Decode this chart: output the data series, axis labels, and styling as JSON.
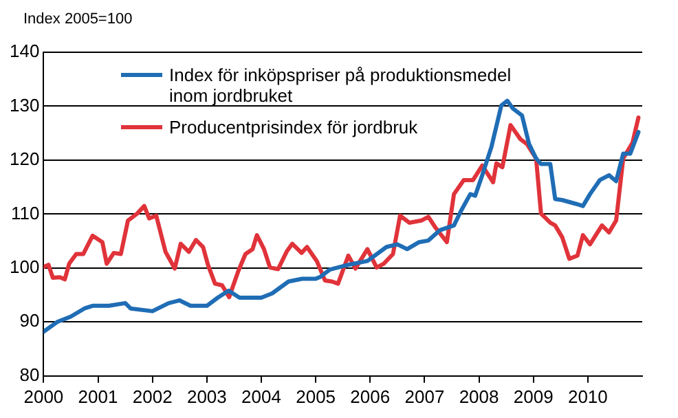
{
  "chart_data": {
    "type": "line",
    "ylabel": "Index 2005=100",
    "xlim": [
      2000,
      2011
    ],
    "xticks": [
      2000,
      2001,
      2002,
      2003,
      2004,
      2005,
      2006,
      2007,
      2008,
      2009,
      2010
    ],
    "ylim": [
      80,
      140
    ],
    "yticks": [
      80,
      90,
      100,
      110,
      120,
      130,
      140
    ],
    "grid": "y",
    "legend": "top left",
    "marker": "none",
    "line_style": "solid",
    "series": [
      {
        "name": "Index för inköpspriser på produktionsmedel inom jordbruket",
        "color": "#1f6db5",
        "x": [
          2000,
          2000.25,
          2000.5,
          2000.75,
          2000.9,
          2001.2,
          2001.5,
          2001.6,
          2002,
          2002.3,
          2002.5,
          2002.7,
          2003,
          2003.2,
          2003.4,
          2003.6,
          2004,
          2004.2,
          2004.5,
          2004.75,
          2005,
          2005.09,
          2005.26,
          2005.6,
          2005.95,
          2006.3,
          2006.5,
          2006.68,
          2006.9,
          2007.07,
          2007.28,
          2007.54,
          2007.67,
          2007.84,
          2007.93,
          2008.06,
          2008.23,
          2008.41,
          2008.52,
          2008.62,
          2008.79,
          2008.92,
          2009.05,
          2009.14,
          2009.31,
          2009.4,
          2009.53,
          2009.78,
          2009.91,
          2010.04,
          2010.22,
          2010.39,
          2010.52,
          2010.65,
          2010.78,
          2010.93
        ],
        "values": [
          88.2,
          90,
          91,
          92.5,
          93,
          93,
          93.5,
          92.5,
          92,
          93.5,
          94,
          93,
          93,
          94.5,
          95.8,
          94.5,
          94.5,
          95.3,
          97.5,
          98,
          98,
          98.4,
          99.7,
          100.6,
          101.3,
          103.9,
          104.4,
          103.5,
          104.8,
          105.1,
          107,
          107.9,
          110.6,
          113.7,
          113.4,
          117.2,
          122.5,
          130.1,
          131,
          129.6,
          128.3,
          123,
          120.3,
          119.3,
          119.3,
          112.8,
          112.6,
          111.9,
          111.5,
          113.7,
          116.3,
          117.2,
          116.1,
          121.2,
          121.2,
          125.2
        ]
      },
      {
        "name": "Producentprisindex för jordbruk",
        "color": "#e0333a",
        "x": [
          2000,
          2000.09,
          2000.17,
          2000.3,
          2000.39,
          2000.47,
          2000.6,
          2000.73,
          2000.9,
          2001.08,
          2001.16,
          2001.29,
          2001.42,
          2001.55,
          2001.72,
          2001.85,
          2001.94,
          2002.07,
          2002.24,
          2002.41,
          2002.52,
          2002.67,
          2002.8,
          2002.93,
          2003.02,
          2003.15,
          2003.28,
          2003.41,
          2003.58,
          2003.71,
          2003.84,
          2003.92,
          2004.05,
          2004.16,
          2004.31,
          2004.47,
          2004.57,
          2004.74,
          2004.84,
          2005.02,
          2005.17,
          2005.3,
          2005.41,
          2005.6,
          2005.73,
          2005.95,
          2006.12,
          2006.25,
          2006.42,
          2006.55,
          2006.72,
          2006.94,
          2007.07,
          2007.2,
          2007.41,
          2007.54,
          2007.72,
          2007.89,
          2008.06,
          2008.26,
          2008.32,
          2008.43,
          2008.58,
          2008.76,
          2008.88,
          2009.05,
          2009.14,
          2009.31,
          2009.4,
          2009.53,
          2009.66,
          2009.81,
          2009.91,
          2010.04,
          2010.26,
          2010.39,
          2010.52,
          2010.65,
          2010.82,
          2010.93
        ],
        "values": [
          100.2,
          100.6,
          98.2,
          98.3,
          97.9,
          100.8,
          102.6,
          102.6,
          106,
          104.8,
          100.8,
          102.8,
          102.6,
          108.8,
          110.1,
          111.5,
          109.2,
          109.7,
          103,
          99.9,
          104.5,
          103,
          105.2,
          103.9,
          100.6,
          97.1,
          96.8,
          94.6,
          99.5,
          102.6,
          103.5,
          106.1,
          103.5,
          100.1,
          99.8,
          103.1,
          104.5,
          102.8,
          103.9,
          101.3,
          97.7,
          97.5,
          97.1,
          102.3,
          99.9,
          103.5,
          100.1,
          100.8,
          102.6,
          109.7,
          108.4,
          108.8,
          109.5,
          107.5,
          104.8,
          113.7,
          116.3,
          116.3,
          119,
          115.9,
          119.4,
          118.7,
          126.5,
          123.9,
          123,
          120.3,
          110.1,
          108.4,
          107.9,
          105.7,
          101.7,
          102.3,
          106.1,
          104.4,
          107.9,
          106.6,
          108.8,
          120.3,
          123.2,
          127.9
        ]
      }
    ]
  }
}
